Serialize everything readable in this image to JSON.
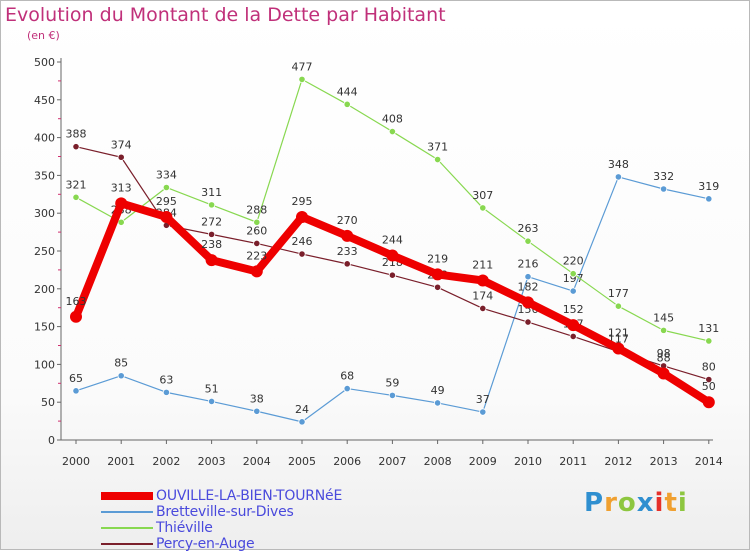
{
  "chart_data": {
    "type": "line",
    "title": "Evolution du Montant de la Dette par Habitant",
    "subtitle": "(en €)",
    "xlabel": "",
    "ylabel": "",
    "ylim": [
      0,
      500
    ],
    "y_ticks": [
      "0",
      "50",
      "100",
      "150",
      "200",
      "250",
      "300",
      "350",
      "400",
      "450",
      "500"
    ],
    "x": [
      "2000",
      "2001",
      "2002",
      "2003",
      "2004",
      "2005",
      "2006",
      "2007",
      "2008",
      "2009",
      "2010",
      "2011",
      "2012",
      "2013",
      "2014"
    ],
    "grid": false,
    "legend_position": "bottom-left",
    "series": [
      {
        "name": "OUVILLE-LA-BIEN-TOURNéE",
        "color": "#ee0000",
        "values": [
          163,
          313,
          295,
          238,
          223,
          295,
          270,
          244,
          219,
          211,
          182,
          152,
          121,
          88,
          50
        ],
        "labels": [
          "163",
          "313",
          "295",
          "238",
          "223",
          "295",
          "270",
          "244",
          "219",
          "211",
          "182",
          "152",
          "121",
          "88",
          "50"
        ]
      },
      {
        "name": "Bretteville-sur-Dives",
        "color": "#5b9bd5",
        "values": [
          65,
          85,
          63,
          51,
          38,
          24,
          68,
          59,
          49,
          37,
          216,
          197,
          348,
          332,
          319
        ],
        "labels": [
          "65",
          "85",
          "63",
          "51",
          "38",
          "24",
          "68",
          "59",
          "49",
          "37",
          "216",
          "197",
          "348",
          "332",
          "319"
        ]
      },
      {
        "name": "Thiéville",
        "color": "#88d850",
        "values": [
          321,
          288,
          334,
          311,
          288,
          477,
          444,
          408,
          371,
          307,
          263,
          220,
          177,
          145,
          131
        ],
        "labels": [
          "321",
          "288",
          "334",
          "311",
          "288",
          "477",
          "444",
          "408",
          "371",
          "307",
          "263",
          "220",
          "177",
          "145",
          "131"
        ]
      },
      {
        "name": "Percy-en-Auge",
        "color": "#7a1f2b",
        "values": [
          388,
          374,
          284,
          272,
          260,
          246,
          233,
          218,
          202,
          174,
          156,
          137,
          117,
          98,
          80
        ],
        "labels": [
          "388",
          "374",
          "284",
          "272",
          "260",
          "246",
          "233",
          "218",
          "202",
          "174",
          "156",
          "137",
          "117",
          "98",
          "80"
        ]
      }
    ]
  },
  "brand": {
    "name": "Proxiti",
    "letters": [
      "P",
      "r",
      "o",
      "x",
      "i",
      "t",
      "i"
    ],
    "colors": [
      "#2f8fd0",
      "#f0a030",
      "#8dc63f",
      "#2f8fd0",
      "#e6302a",
      "#f0a030",
      "#8dc63f"
    ]
  }
}
